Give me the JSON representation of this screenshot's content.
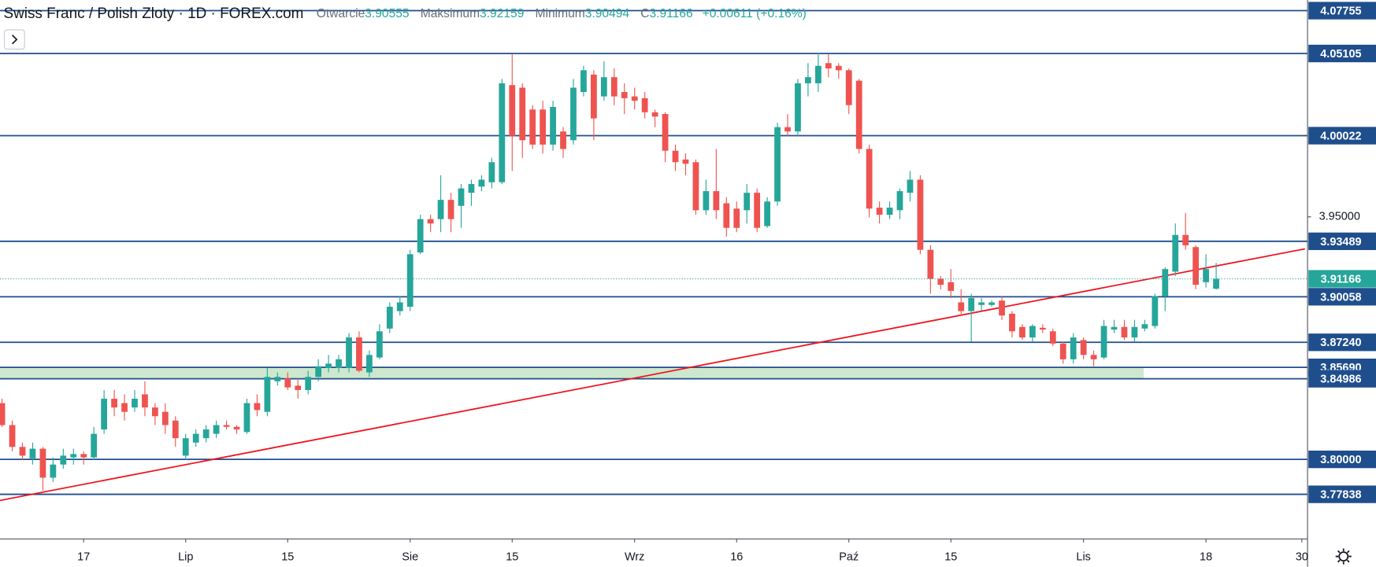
{
  "chart_data": {
    "type": "candlestick",
    "title": "Swiss Franc / Polish Zloty · 1D · FOREX.com",
    "open_label": "Otwarcie",
    "high_label": "Maksimum",
    "low_label": "Minimum",
    "close_label": "C",
    "change": "+0.00611 (+0.16%)",
    "up_color": "#26a69a",
    "down_color": "#ef5350",
    "level_color": "#1f4e8c",
    "xlim": [
      -0.2,
      127.7
    ],
    "xticks": [
      {
        "value": 8,
        "label": "17"
      },
      {
        "value": 18,
        "label": "Lip"
      },
      {
        "value": 28,
        "label": "15"
      },
      {
        "value": 40,
        "label": "Sie"
      },
      {
        "value": 50,
        "label": "15"
      },
      {
        "value": 62,
        "label": "Wrz"
      },
      {
        "value": 72,
        "label": "16"
      },
      {
        "value": 83,
        "label": "Paź"
      },
      {
        "value": 93,
        "label": "15"
      },
      {
        "value": 106,
        "label": "Lis"
      },
      {
        "value": 118,
        "label": "18"
      },
      {
        "value": 127.4,
        "label": "30"
      }
    ],
    "ylim": [
      3.7508,
      4.0841
    ],
    "yticks": [
      {
        "value": 3.95,
        "label": "3.95000"
      }
    ],
    "levels": [
      4.07755,
      4.05105,
      4.00022,
      3.93489,
      3.90058,
      {
        "value": 3.8724,
        "label": "3.87240"
      },
      {
        "value": 3.8569,
        "label": "3.85690"
      },
      3.84986,
      {
        "value": 3.8,
        "label": "3.80000"
      },
      3.77838
    ],
    "zone": {
      "low": 3.84986,
      "high": 3.8569,
      "x_end": 111.9,
      "color": "#c8e6c9"
    },
    "trendline": {
      "x": [
        -0.2,
        127.7
      ],
      "y": [
        3.7746,
        3.9302
      ],
      "color": "#f0141e"
    },
    "open": [
      3.8348,
      3.8212,
      3.8077,
      3.8006,
      3.8066,
      3.7887,
      3.7968,
      3.8012,
      3.8033,
      3.8012,
      3.8185,
      3.8375,
      3.8348,
      3.8321,
      3.8402,
      3.8321,
      3.8294,
      3.824,
      3.8023,
      3.8104,
      3.8131,
      3.8158,
      3.8212,
      3.8201,
      3.8169,
      3.8348,
      3.8294,
      3.8483,
      3.85,
      3.8456,
      3.8429,
      3.851,
      3.8565,
      3.8565,
      3.8565,
      3.8754,
      3.8538,
      3.863,
      3.8809,
      3.8917,
      3.8944,
      3.928,
      3.9486,
      3.9486,
      3.9605,
      3.9568,
      3.9649,
      3.9687,
      3.9714,
      3.9714,
      4.0315,
      4.0299,
      4.0164,
      4.0164,
      3.9947,
      4.0028,
      3.9974,
      4.0272,
      4.038,
      4.0245,
      4.0364,
      4.0272,
      4.0245,
      4.0234,
      4.0147,
      4.0136,
      3.9909,
      3.9855,
      3.9838,
      3.9541,
      3.9659,
      3.9584,
      3.9551,
      3.9541,
      3.9649,
      3.9443,
      3.9595,
      4.0055,
      4.0028,
      4.0326,
      4.0326,
      4.0451,
      4.0434,
      4.0407,
      4.0342,
      3.992,
      3.9557,
      3.9513,
      3.9541,
      3.9649,
      3.973,
      3.9296,
      3.9117,
      3.9096,
      3.8971,
      3.8917,
      3.8955,
      3.8955,
      3.8982,
      3.8901,
      3.8819,
      3.8754,
      3.8814,
      3.8792,
      3.8716,
      3.8619,
      3.8738,
      3.8646,
      3.863,
      3.8803,
      3.8819,
      3.8754,
      3.8809,
      3.8825,
      3.9009,
      3.9161,
      3.9388,
      3.9313,
      3.9096,
      3.90555
    ],
    "high": [
      3.8375,
      3.824,
      3.8104,
      3.8104,
      3.8077,
      3.8012,
      3.8066,
      3.8066,
      3.805,
      3.8201,
      3.8429,
      3.8429,
      3.8402,
      3.8429,
      3.8483,
      3.8348,
      3.8348,
      3.8267,
      3.8158,
      3.8185,
      3.8212,
      3.824,
      3.824,
      3.8212,
      3.8375,
      3.8402,
      3.8565,
      3.8538,
      3.8538,
      3.85,
      3.8548,
      3.8619,
      3.8646,
      3.8646,
      3.8781,
      3.8792,
      3.8673,
      3.8836,
      3.8971,
      3.9009,
      3.9296,
      3.9513,
      3.9513,
      3.9757,
      3.9649,
      3.9703,
      3.973,
      3.9757,
      3.9865,
      4.0353,
      4.0505,
      4.0326,
      4.0191,
      4.0218,
      4.0218,
      4.0055,
      4.0353,
      4.0434,
      4.0407,
      4.0462,
      4.0418,
      4.0326,
      4.0299,
      4.0272,
      4.0164,
      4.0147,
      3.9947,
      3.9892,
      3.9855,
      3.973,
      3.992,
      3.9622,
      3.9595,
      3.9703,
      3.9676,
      3.9622,
      4.0082,
      4.0136,
      4.0353,
      4.0451,
      4.0516,
      4.0505,
      4.0451,
      4.0418,
      4.0353,
      3.9947,
      3.9595,
      3.9595,
      3.9676,
      3.9784,
      3.9757,
      3.9324,
      3.9134,
      3.9177,
      3.9052,
      3.9025,
      3.8998,
      3.8982,
      3.9009,
      3.8917,
      3.8836,
      3.8836,
      3.8836,
      3.8809,
      3.8727,
      3.8781,
      3.8754,
      3.8673,
      3.8863,
      3.8863,
      3.8863,
      3.8863,
      3.8863,
      3.9025,
      3.9188,
      3.9459,
      3.9524,
      3.9324,
      3.9269,
      3.92159
    ],
    "low": [
      3.8201,
      3.805,
      3.7996,
      3.7968,
      3.7806,
      3.786,
      3.7941,
      3.7968,
      3.7968,
      3.7996,
      3.8158,
      3.8267,
      3.824,
      3.8294,
      3.8267,
      3.8212,
      3.8158,
      3.8077,
      3.7996,
      3.8077,
      3.8104,
      3.8131,
      3.8185,
      3.8158,
      3.8158,
      3.8267,
      3.8267,
      3.8456,
      3.8429,
      3.8375,
      3.8402,
      3.8483,
      3.8538,
      3.8538,
      3.8538,
      3.8538,
      3.851,
      3.8619,
      3.8781,
      3.889,
      3.8917,
      3.9269,
      3.9405,
      3.9405,
      3.9405,
      3.9432,
      3.9568,
      3.9659,
      3.9676,
      3.9703,
      3.9784,
      3.9865,
      3.992,
      3.9892,
      3.9909,
      3.9865,
      3.9947,
      4.0245,
      3.9974,
      4.0218,
      4.0191,
      4.0136,
      4.0164,
      4.0109,
      4.0055,
      3.9838,
      3.9784,
      3.9757,
      3.9513,
      3.9513,
      3.9486,
      3.9378,
      3.9405,
      3.9459,
      3.9405,
      3.9432,
      3.9568,
      4.0001,
      4.0001,
      4.0245,
      4.0272,
      4.0364,
      4.0353,
      4.0136,
      3.9892,
      3.9497,
      3.9459,
      3.9486,
      3.9486,
      3.9595,
      3.9269,
      3.9025,
      3.9052,
      3.8998,
      3.889,
      3.8727,
      3.8917,
      3.8944,
      3.8863,
      3.8754,
      3.8738,
      3.8727,
      3.8781,
      3.87,
      3.8592,
      3.8592,
      3.8619,
      3.8576,
      3.8619,
      3.8781,
      3.8738,
      3.8727,
      3.8792,
      3.8809,
      3.8917,
      3.9134,
      3.9296,
      3.9052,
      3.9063,
      3.90494
    ],
    "close": [
      3.8212,
      3.8077,
      3.8023,
      3.8066,
      3.7887,
      3.7968,
      3.8023,
      3.8033,
      3.8012,
      3.8158,
      3.8375,
      3.8321,
      3.8294,
      3.8375,
      3.8321,
      3.8267,
      3.8212,
      3.8131,
      3.8131,
      3.8158,
      3.8185,
      3.8212,
      3.8201,
      3.8185,
      3.8348,
      3.8305,
      3.851,
      3.851,
      3.8445,
      3.8429,
      3.851,
      3.8576,
      3.8592,
      3.8619,
      3.8754,
      3.8548,
      3.8646,
      3.8792,
      3.8944,
      3.8971,
      3.9269,
      3.9486,
      3.9459,
      3.9605,
      3.9486,
      3.9676,
      3.9703,
      3.973,
      3.9838,
      4.0326,
      4.0001,
      3.9974,
      3.9947,
      3.9947,
      4.018,
      3.992,
      4.0299,
      4.0407,
      4.0109,
      4.0364,
      4.0245,
      4.0234,
      4.0218,
      4.0147,
      4.012,
      3.9909,
      3.9838,
      3.9828,
      3.9541,
      3.9659,
      3.9541,
      3.9432,
      3.9432,
      3.9649,
      3.9432,
      3.9595,
      4.0055,
      4.0028,
      4.0326,
      4.0364,
      4.0434,
      4.0418,
      4.0407,
      4.0191,
      3.992,
      3.9551,
      3.9513,
      3.9557,
      3.9659,
      3.973,
      3.9296,
      3.9117,
      3.908,
      3.9042,
      3.8917,
      3.8998,
      3.8971,
      3.8971,
      3.889,
      3.8792,
      3.8754,
      3.8825,
      3.8803,
      3.8716,
      3.8619,
      3.8754,
      3.8646,
      3.8619,
      3.8825,
      3.8819,
      3.8754,
      3.8819,
      3.8836,
      3.9009,
      3.9177,
      3.9388,
      3.9324,
      3.908,
      3.9177,
      3.91166
    ]
  }
}
